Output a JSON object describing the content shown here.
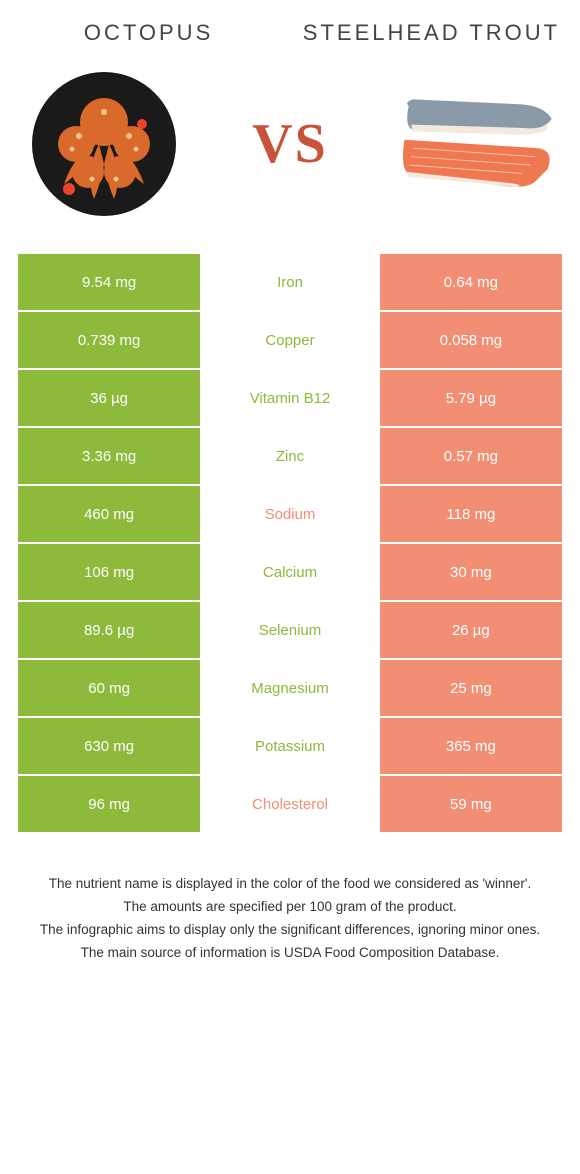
{
  "colors": {
    "left_food": "#8dba3a",
    "right_food": "#f28e74",
    "vs_text": "#c7543a",
    "octopus_body": "#d96a2b",
    "octopus_bowl": "#1a1a1a",
    "trout_skin": "#8a9aa8",
    "trout_flesh": "#f07850",
    "trout_belly": "#f5e8df"
  },
  "header": {
    "left_title": "Octopus",
    "right_title": "Steelhead trout",
    "vs": "VS"
  },
  "rows": [
    {
      "left": "9.54 mg",
      "label": "Iron",
      "right": "0.64 mg",
      "winner": "left"
    },
    {
      "left": "0.739 mg",
      "label": "Copper",
      "right": "0.058 mg",
      "winner": "left"
    },
    {
      "left": "36 µg",
      "label": "Vitamin B12",
      "right": "5.79 µg",
      "winner": "left"
    },
    {
      "left": "3.36 mg",
      "label": "Zinc",
      "right": "0.57 mg",
      "winner": "left"
    },
    {
      "left": "460 mg",
      "label": "Sodium",
      "right": "118 mg",
      "winner": "right"
    },
    {
      "left": "106 mg",
      "label": "Calcium",
      "right": "30 mg",
      "winner": "left"
    },
    {
      "left": "89.6 µg",
      "label": "Selenium",
      "right": "26 µg",
      "winner": "left"
    },
    {
      "left": "60 mg",
      "label": "Magnesium",
      "right": "25 mg",
      "winner": "left"
    },
    {
      "left": "630 mg",
      "label": "Potassium",
      "right": "365 mg",
      "winner": "left"
    },
    {
      "left": "96 mg",
      "label": "Cholesterol",
      "right": "59 mg",
      "winner": "right"
    }
  ],
  "footer": {
    "line1": "The nutrient name is displayed in the color of the food we considered as 'winner'.",
    "line2": "The amounts are specified per 100 gram of the product.",
    "line3": "The infographic aims to display only the significant differences, ignoring minor ones.",
    "line4": "The main source of information is USDA Food Composition Database."
  }
}
